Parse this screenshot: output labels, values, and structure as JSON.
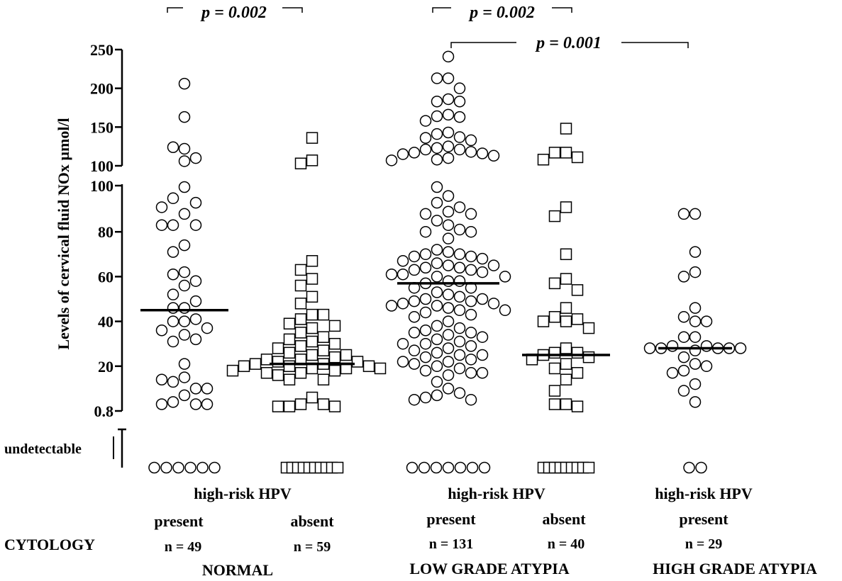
{
  "chart_data": {
    "type": "scatter",
    "title": "",
    "ylabel": "Levels of cervical fluid NOx µmol/l",
    "y_ticks_upper": [
      "250",
      "200",
      "150",
      "100"
    ],
    "y_ticks_lower": [
      "100",
      "80",
      "60",
      "40",
      "20",
      "0.8"
    ],
    "undetectable_label": "undetectable",
    "upper_range": [
      100,
      250
    ],
    "lower_range": [
      0,
      100
    ],
    "groups": [
      {
        "id": "normal-present",
        "marker": "circle",
        "hpv": "present",
        "n_label": "n = 49",
        "median": 45,
        "values": [
          206,
          163,
          122,
          124,
          106,
          110,
          100,
          95,
          88,
          93,
          91,
          83,
          83,
          83,
          74,
          71,
          62,
          61,
          58,
          56,
          52,
          46,
          49,
          46,
          41,
          40,
          40,
          36,
          37,
          34,
          31,
          32,
          21,
          15,
          13,
          10,
          14,
          10,
          7,
          4,
          3,
          3,
          3
        ],
        "undetectable_count": 6
      },
      {
        "id": "normal-absent",
        "marker": "square",
        "hpv": "absent",
        "n_label": "n = 59",
        "median": 21,
        "values": [
          136,
          107,
          103,
          67,
          63,
          59,
          56,
          51,
          48,
          43,
          43,
          41,
          39,
          38,
          37,
          35,
          33,
          32,
          31,
          30,
          29,
          28,
          27,
          26,
          25,
          25,
          24,
          23,
          23,
          22,
          22,
          21,
          21,
          20,
          20,
          20,
          19,
          19,
          19,
          18,
          18,
          17,
          17,
          16,
          14,
          14,
          6,
          3,
          3,
          2,
          2,
          2
        ],
        "undetectable_count": 10
      },
      {
        "id": "low-present",
        "marker": "circle",
        "hpv": "present",
        "n_label": "n = 131",
        "median": 57,
        "values": [
          241,
          213,
          213,
          200,
          186,
          183,
          183,
          166,
          164,
          163,
          158,
          143,
          141,
          137,
          136,
          133,
          125,
          123,
          121,
          121,
          118,
          117,
          116,
          115,
          113,
          110,
          108,
          107,
          96,
          100,
          93,
          91,
          89,
          88,
          88,
          85,
          83,
          81,
          80,
          80,
          77,
          72,
          71,
          70,
          70,
          69,
          69,
          68,
          67,
          66,
          65,
          65,
          64,
          64,
          63,
          63,
          62,
          61,
          61,
          60,
          60,
          58,
          58,
          57,
          55,
          55,
          53,
          52,
          51,
          50,
          50,
          49,
          49,
          48,
          48,
          47,
          47,
          46,
          45,
          45,
          44,
          43,
          42,
          40,
          38,
          37,
          36,
          35,
          35,
          34,
          33,
          32,
          31,
          30,
          30,
          29,
          28,
          27,
          26,
          25,
          25,
          24,
          23,
          22,
          22,
          21,
          20,
          19,
          18,
          17,
          17,
          16,
          13,
          10,
          8,
          7,
          6,
          5,
          5
        ],
        "undetectable_count": 7
      },
      {
        "id": "low-absent",
        "marker": "square",
        "hpv": "absent",
        "n_label": "n = 40",
        "median": 25,
        "values": [
          148,
          117,
          117,
          111,
          108,
          91,
          87,
          70,
          59,
          57,
          54,
          46,
          42,
          41,
          40,
          40,
          37,
          28,
          26,
          26,
          25,
          24,
          23,
          21,
          19,
          17,
          14,
          9,
          3,
          3,
          2
        ],
        "undetectable_count": 9
      },
      {
        "id": "high-present",
        "marker": "circle",
        "hpv": "present",
        "n_label": "n = 29",
        "median": 28,
        "values": [
          88,
          88,
          71,
          62,
          60,
          46,
          42,
          40,
          40,
          33,
          33,
          29,
          29,
          28,
          28,
          28,
          28,
          28,
          27,
          24,
          21,
          20,
          18,
          17,
          12,
          9,
          4
        ],
        "undetectable_count": 2
      }
    ],
    "significance": [
      {
        "text": "p = 0.002",
        "between": [
          "normal-present",
          "normal-absent"
        ]
      },
      {
        "text": "p = 0.002",
        "between": [
          "low-present",
          "low-absent"
        ]
      },
      {
        "text": "p = 0.001",
        "between": [
          "low-present",
          "high-present"
        ]
      }
    ],
    "category_labels": {
      "row_label": "CYTOLOGY",
      "hpv_header": "high-risk HPV",
      "present": "present",
      "absent": "absent",
      "normal": "NORMAL",
      "low_grade": "LOW GRADE ATYPIA",
      "high_grade": "HIGH GRADE ATYPIA"
    }
  }
}
